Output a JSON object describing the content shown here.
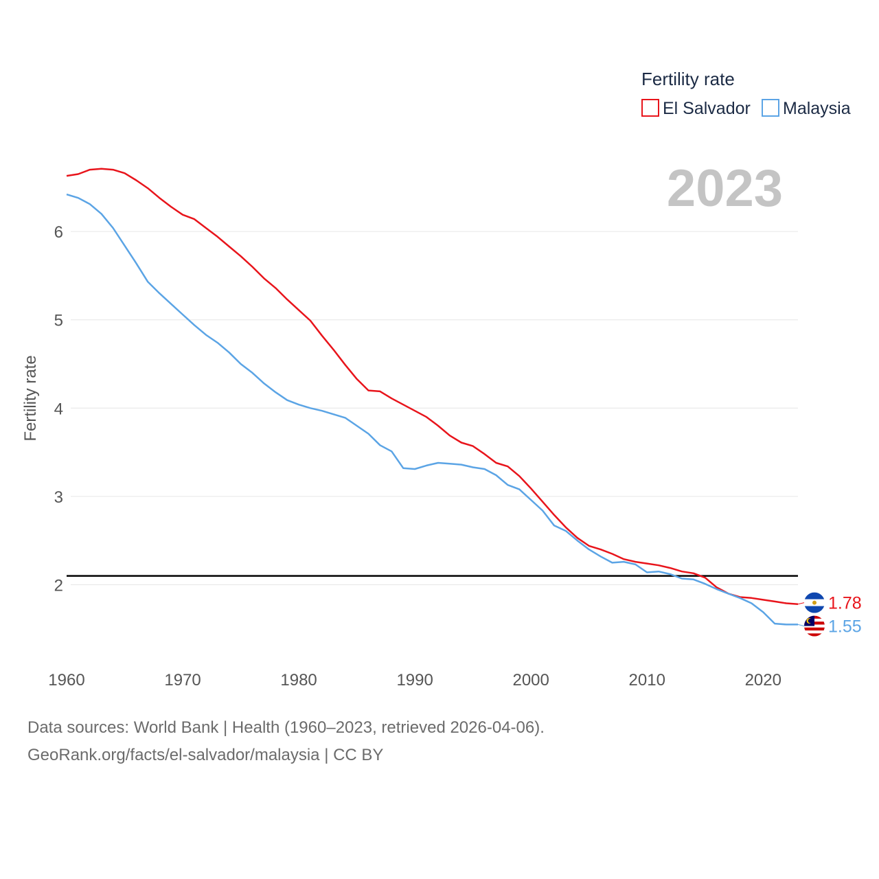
{
  "chart_data": {
    "type": "line",
    "title": "Fertility rate",
    "xlabel": "",
    "ylabel": "Fertility rate",
    "year_label": "2023",
    "xlim": [
      1960,
      2023
    ],
    "ylim": [
      1.3,
      7.0
    ],
    "xticks": [
      1960,
      1970,
      1980,
      1990,
      2000,
      2010,
      2020
    ],
    "yticks": [
      2,
      3,
      4,
      5,
      6
    ],
    "reference_line": {
      "value": 2.1,
      "color": "#000000"
    },
    "x": [
      1960,
      1961,
      1962,
      1963,
      1964,
      1965,
      1966,
      1967,
      1968,
      1969,
      1970,
      1971,
      1972,
      1973,
      1974,
      1975,
      1976,
      1977,
      1978,
      1979,
      1980,
      1981,
      1982,
      1983,
      1984,
      1985,
      1986,
      1987,
      1988,
      1989,
      1990,
      1991,
      1992,
      1993,
      1994,
      1995,
      1996,
      1997,
      1998,
      1999,
      2000,
      2001,
      2002,
      2003,
      2004,
      2005,
      2006,
      2007,
      2008,
      2009,
      2010,
      2011,
      2012,
      2013,
      2014,
      2015,
      2016,
      2017,
      2018,
      2019,
      2020,
      2021,
      2022,
      2023
    ],
    "series": [
      {
        "name": "El Salvador",
        "color": "#e8141b",
        "end_label": "1.78",
        "flag": "el-salvador-flag",
        "values": [
          6.63,
          6.65,
          6.7,
          6.71,
          6.7,
          6.66,
          6.58,
          6.49,
          6.38,
          6.28,
          6.19,
          6.14,
          6.04,
          5.94,
          5.83,
          5.72,
          5.6,
          5.47,
          5.36,
          5.23,
          5.11,
          4.99,
          4.82,
          4.66,
          4.49,
          4.33,
          4.2,
          4.19,
          4.11,
          4.04,
          3.97,
          3.9,
          3.8,
          3.69,
          3.61,
          3.57,
          3.48,
          3.38,
          3.34,
          3.23,
          3.09,
          2.94,
          2.79,
          2.65,
          2.53,
          2.44,
          2.4,
          2.35,
          2.29,
          2.26,
          2.24,
          2.22,
          2.19,
          2.15,
          2.13,
          2.08,
          1.97,
          1.9,
          1.86,
          1.85,
          1.83,
          1.81,
          1.79,
          1.78
        ]
      },
      {
        "name": "Malaysia",
        "color": "#5ba4e5",
        "end_label": "1.55",
        "flag": "malaysia-flag",
        "values": [
          6.42,
          6.38,
          6.31,
          6.2,
          6.04,
          5.84,
          5.64,
          5.43,
          5.3,
          5.18,
          5.06,
          4.94,
          4.83,
          4.74,
          4.63,
          4.5,
          4.4,
          4.28,
          4.18,
          4.09,
          4.04,
          4.0,
          3.97,
          3.93,
          3.89,
          3.8,
          3.71,
          3.58,
          3.51,
          3.32,
          3.31,
          3.35,
          3.38,
          3.37,
          3.36,
          3.33,
          3.31,
          3.24,
          3.13,
          3.08,
          2.96,
          2.84,
          2.67,
          2.61,
          2.5,
          2.4,
          2.32,
          2.25,
          2.26,
          2.23,
          2.14,
          2.15,
          2.12,
          2.07,
          2.06,
          2.01,
          1.95,
          1.9,
          1.85,
          1.79,
          1.69,
          1.56,
          1.55,
          1.55
        ]
      }
    ]
  },
  "footer": {
    "line1": "Data sources: World Bank | Health (1960–2023, retrieved 2026-04-06).",
    "line2": "GeoRank.org/facts/el-salvador/malaysia | CC BY"
  }
}
